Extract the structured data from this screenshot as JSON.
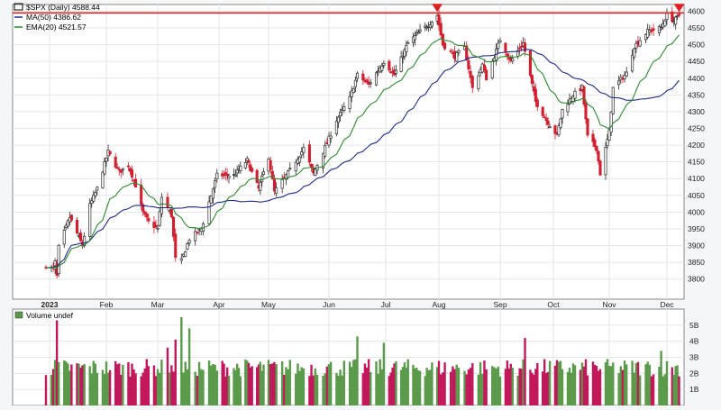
{
  "chart_data": [
    {
      "type": "candlestick",
      "legend": [
        {
          "label": "$SPX (Daily) 4588.44",
          "color": "#000000"
        },
        {
          "label": "MA(50) 4386.62",
          "color": "#1f2a8a"
        },
        {
          "label": "EMA(20) 4521.57",
          "color": "#2e8b2e"
        }
      ],
      "ylim": [
        3740,
        4620
      ],
      "y_ticks": [
        3800,
        3850,
        3900,
        3950,
        4000,
        4050,
        4100,
        4150,
        4200,
        4250,
        4300,
        4350,
        4400,
        4450,
        4500,
        4550,
        4600
      ],
      "x_ticks": [
        "2023",
        "Feb",
        "Mar",
        "Apr",
        "May",
        "Jun",
        "Jul",
        "Aug",
        "Sep",
        "Oct",
        "Nov",
        "Dec"
      ],
      "resistance_level": 4595,
      "close_path": [
        [
          "2022-12-30",
          3840
        ],
        [
          "2023-01-03",
          3830
        ],
        [
          "2023-01-04",
          3850
        ],
        [
          "2023-01-05",
          3808
        ],
        [
          "2023-01-06",
          3895
        ],
        [
          "2023-01-12",
          3985
        ],
        [
          "2023-01-19",
          3900
        ],
        [
          "2023-01-23",
          4020
        ],
        [
          "2023-01-27",
          4070
        ],
        [
          "2023-02-02",
          4180
        ],
        [
          "2023-02-08",
          4120
        ],
        [
          "2023-02-13",
          4140
        ],
        [
          "2023-02-17",
          4080
        ],
        [
          "2023-02-21",
          3998
        ],
        [
          "2023-02-24",
          3970
        ],
        [
          "2023-03-01",
          3950
        ],
        [
          "2023-03-03",
          4045
        ],
        [
          "2023-03-08",
          3990
        ],
        [
          "2023-03-10",
          3860
        ],
        [
          "2023-03-13",
          3855
        ],
        [
          "2023-03-17",
          3920
        ],
        [
          "2023-03-23",
          3950
        ],
        [
          "2023-03-31",
          4110
        ],
        [
          "2023-04-10",
          4110
        ],
        [
          "2023-04-18",
          4155
        ],
        [
          "2023-04-25",
          4070
        ],
        [
          "2023-05-01",
          4165
        ],
        [
          "2023-05-04",
          4060
        ],
        [
          "2023-05-12",
          4125
        ],
        [
          "2023-05-19",
          4190
        ],
        [
          "2023-05-24",
          4115
        ],
        [
          "2023-06-01",
          4220
        ],
        [
          "2023-06-05",
          4275
        ],
        [
          "2023-06-12",
          4340
        ],
        [
          "2023-06-16",
          4410
        ],
        [
          "2023-06-22",
          4380
        ],
        [
          "2023-06-30",
          4450
        ],
        [
          "2023-07-06",
          4410
        ],
        [
          "2023-07-14",
          4505
        ],
        [
          "2023-07-20",
          4535
        ],
        [
          "2023-07-27",
          4565
        ],
        [
          "2023-07-31",
          4588
        ],
        [
          "2023-08-03",
          4500
        ],
        [
          "2023-08-09",
          4465
        ],
        [
          "2023-08-14",
          4490
        ],
        [
          "2023-08-18",
          4370
        ],
        [
          "2023-08-23",
          4440
        ],
        [
          "2023-08-25",
          4400
        ],
        [
          "2023-09-01",
          4515
        ],
        [
          "2023-09-07",
          4450
        ],
        [
          "2023-09-14",
          4505
        ],
        [
          "2023-09-21",
          4330
        ],
        [
          "2023-09-27",
          4275
        ],
        [
          "2023-10-03",
          4230
        ],
        [
          "2023-10-06",
          4305
        ],
        [
          "2023-10-12",
          4350
        ],
        [
          "2023-10-17",
          4372
        ],
        [
          "2023-10-20",
          4225
        ],
        [
          "2023-10-25",
          4190
        ],
        [
          "2023-10-27",
          4115
        ],
        [
          "2023-11-01",
          4240
        ],
        [
          "2023-11-03",
          4370
        ],
        [
          "2023-11-10",
          4415
        ],
        [
          "2023-11-14",
          4495
        ],
        [
          "2023-11-21",
          4540
        ],
        [
          "2023-11-28",
          4550
        ],
        [
          "2023-12-01",
          4590
        ],
        [
          "2023-12-05",
          4570
        ],
        [
          "2023-12-08",
          4588
        ]
      ]
    },
    {
      "type": "bar",
      "legend": [
        {
          "label": "Volume undef",
          "color": "#000000"
        }
      ],
      "ylim": [
        0,
        6
      ],
      "y_ticks": [
        "1B",
        "2B",
        "3B",
        "4B",
        "5B"
      ],
      "spikes": [
        [
          "2023-01-05",
          5.3
        ],
        [
          "2023-03-06",
          3.6
        ],
        [
          "2023-03-10",
          4.1
        ],
        [
          "2023-03-13",
          5.5
        ],
        [
          "2023-03-17",
          4.8
        ],
        [
          "2023-06-16",
          4.3
        ],
        [
          "2023-06-30",
          3.9
        ],
        [
          "2023-09-15",
          4.2
        ],
        [
          "2023-11-28",
          3.4
        ],
        [
          "2023-12-05",
          1.9
        ]
      ]
    }
  ],
  "colors": {
    "up": "#2a2a2a",
    "down": "#d11f2f",
    "ma50": "#1f2a8a",
    "ema20": "#2e8b2e",
    "resistance": "#e02020",
    "vol_up": "#5a9a4a",
    "vol_down": "#c2185b"
  }
}
